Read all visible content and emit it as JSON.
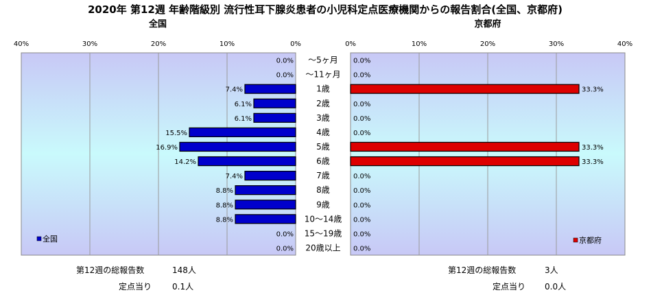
{
  "title": "2020年 第12週 年齢階級別 流行性耳下腺炎患者の小児科定点医療機関からの報告割合(全国、京都府)",
  "colors": {
    "national": "#0000cc",
    "kyoto": "#dd0000",
    "bg_top": "#c8c8f6",
    "bg_mid": "#c9fafc",
    "bg_bottom": "#c8c8f6"
  },
  "chart_data": [
    {
      "type": "bar",
      "orientation": "horizontal",
      "title": "全国",
      "categories": [
        "～5ヶ月",
        "～11ヶ月",
        "1歳",
        "2歳",
        "3歳",
        "4歳",
        "5歳",
        "6歳",
        "7歳",
        "8歳",
        "9歳",
        "10～14歳",
        "15～19歳",
        "20歳以上"
      ],
      "series": [
        {
          "name": "全国",
          "values": [
            0.0,
            0.0,
            7.4,
            6.1,
            6.1,
            15.5,
            16.9,
            14.2,
            7.4,
            8.8,
            8.8,
            8.8,
            0.0,
            0.0
          ]
        }
      ],
      "value_labels": [
        "0.0%",
        "0.0%",
        "7.4%",
        "6.1%",
        "6.1%",
        "15.5%",
        "16.9%",
        "14.2%",
        "7.4%",
        "8.8%",
        "8.8%",
        "8.8%",
        "0.0%",
        "0.0%"
      ],
      "xlim": [
        40,
        0
      ],
      "xticks": [
        "40%",
        "30%",
        "20%",
        "10%",
        "0%"
      ],
      "grid": true,
      "legend": "bottom-left"
    },
    {
      "type": "bar",
      "orientation": "horizontal",
      "title": "京都府",
      "categories": [
        "～5ヶ月",
        "～11ヶ月",
        "1歳",
        "2歳",
        "3歳",
        "4歳",
        "5歳",
        "6歳",
        "7歳",
        "8歳",
        "9歳",
        "10～14歳",
        "15～19歳",
        "20歳以上"
      ],
      "series": [
        {
          "name": "京都府",
          "values": [
            0.0,
            0.0,
            33.3,
            0.0,
            0.0,
            0.0,
            33.3,
            33.3,
            0.0,
            0.0,
            0.0,
            0.0,
            0.0,
            0.0
          ]
        }
      ],
      "value_labels": [
        "0.0%",
        "0.0%",
        "33.3%",
        "0.0%",
        "0.0%",
        "0.0%",
        "33.3%",
        "33.3%",
        "0.0%",
        "0.0%",
        "0.0%",
        "0.0%",
        "0.0%",
        "0.0%"
      ],
      "xlim": [
        0,
        40
      ],
      "xticks": [
        "0%",
        "10%",
        "20%",
        "30%",
        "40%"
      ],
      "grid": true,
      "legend": "bottom-right"
    }
  ],
  "footer": {
    "national": {
      "total_label": "第12週の総報告数",
      "total_value": "148人",
      "per_label": "定点当り",
      "per_value": "0.1人"
    },
    "kyoto": {
      "total_label": "第12週の総報告数",
      "total_value": "3人",
      "per_label": "定点当り",
      "per_value": "0.0人"
    }
  }
}
